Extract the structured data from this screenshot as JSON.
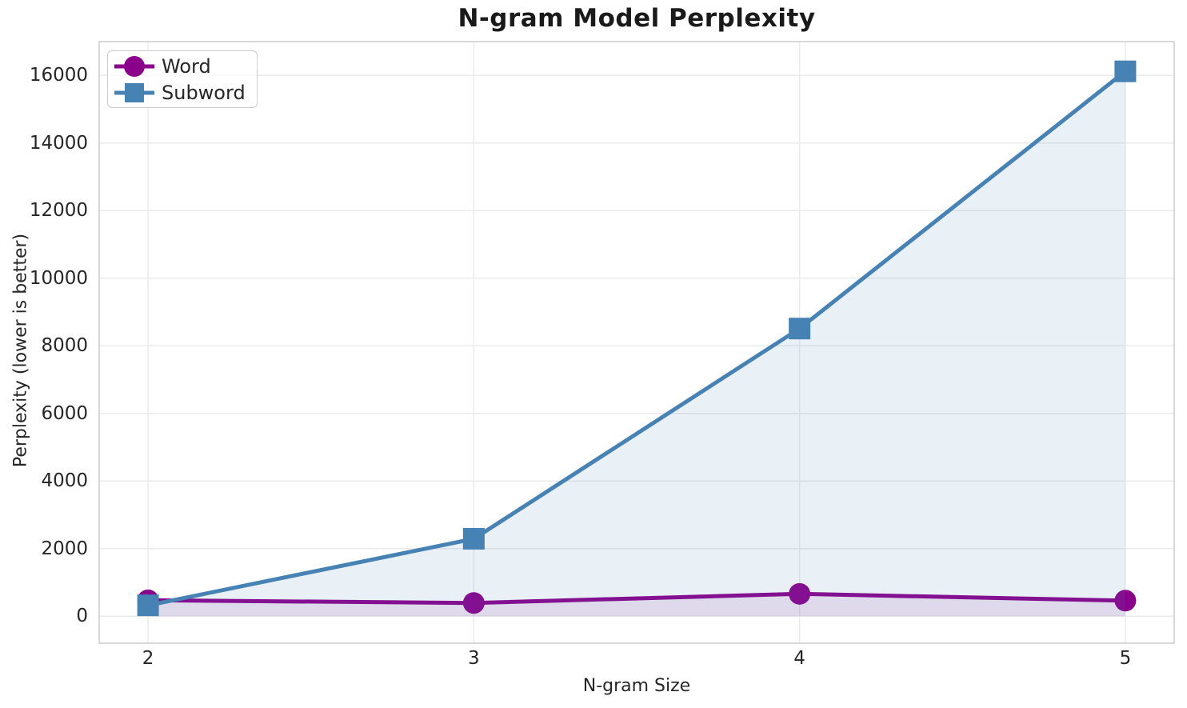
{
  "chart_data": {
    "type": "line",
    "title": "N-gram Model Perplexity",
    "xlabel": "N-gram Size",
    "ylabel": "Perplexity (lower is better)",
    "x": [
      2,
      3,
      4,
      5
    ],
    "x_tick_labels": [
      "2",
      "3",
      "4",
      "5"
    ],
    "y_ticks": [
      0,
      2000,
      4000,
      6000,
      8000,
      10000,
      12000,
      14000,
      16000
    ],
    "y_tick_labels": [
      "0",
      "2000",
      "4000",
      "6000",
      "8000",
      "10000",
      "12000",
      "14000",
      "16000"
    ],
    "xlim": [
      1.85,
      5.15
    ],
    "ylim": [
      -800,
      17000
    ],
    "grid": true,
    "legend_position": "upper-left",
    "area_fill_baseline": 0,
    "series": [
      {
        "name": "Word",
        "marker": "circle",
        "color": "#8B008B",
        "fill": "rgba(139,0,139,0.10)",
        "values": [
          470,
          390,
          660,
          460
        ]
      },
      {
        "name": "Subword",
        "marker": "square",
        "color": "#4682B4",
        "fill": "rgba(70,130,180,0.12)",
        "values": [
          320,
          2290,
          8510,
          16120
        ]
      }
    ],
    "style": {
      "grid_color": "#EBEBEB",
      "spine_color": "#CCCCCC",
      "text_color": "#262626",
      "title_color": "#1A1A1A",
      "background": "#FFFFFF",
      "line_width": 5,
      "marker_size": 27
    }
  }
}
